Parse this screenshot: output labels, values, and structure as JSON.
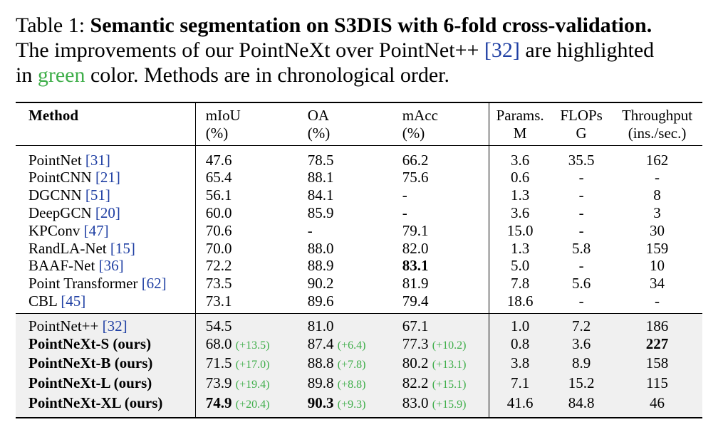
{
  "caption": {
    "label": "Table 1:",
    "title": "Semantic segmentation on S3DIS with 6-fold cross-validation.",
    "text1": "The improvements of our PointNeXt over PointNet++ ",
    "cite": "[32]",
    "text2": " are highlighted",
    "text3": "in ",
    "green_word": "green",
    "text4": " color. Methods are in chronological order."
  },
  "columns": {
    "method": "Method",
    "miou": [
      "mIoU",
      "(%)"
    ],
    "oa": [
      "OA",
      "(%)"
    ],
    "macc": [
      "mAcc",
      "(%)"
    ],
    "params": [
      "Params.",
      "M"
    ],
    "flops": [
      "FLOPs",
      "G"
    ],
    "throughput": [
      "Throughput",
      "(ins./sec.)"
    ]
  },
  "group1": [
    {
      "name": "PointNet",
      "cite": "[31]",
      "miou": "47.6",
      "oa": "78.5",
      "macc": "66.2",
      "params": "3.6",
      "flops": "35.5",
      "throughput": "162"
    },
    {
      "name": "PointCNN",
      "cite": "[21]",
      "miou": "65.4",
      "oa": "88.1",
      "macc": "75.6",
      "params": "0.6",
      "flops": "-",
      "throughput": "-"
    },
    {
      "name": "DGCNN",
      "cite": "[51]",
      "miou": "56.1",
      "oa": "84.1",
      "macc": "-",
      "params": "1.3",
      "flops": "-",
      "throughput": "8"
    },
    {
      "name": "DeepGCN",
      "cite": "[20]",
      "miou": "60.0",
      "oa": "85.9",
      "macc": "-",
      "params": "3.6",
      "flops": "-",
      "throughput": "3"
    },
    {
      "name": "KPConv",
      "cite": "[47]",
      "miou": "70.6",
      "oa": "-",
      "macc": "79.1",
      "params": "15.0",
      "flops": "-",
      "throughput": "30"
    },
    {
      "name": "RandLA-Net",
      "cite": "[15]",
      "miou": "70.0",
      "oa": "88.0",
      "macc": "82.0",
      "params": "1.3",
      "flops": "5.8",
      "throughput": "159"
    },
    {
      "name": "BAAF-Net",
      "cite": "[36]",
      "miou": "72.2",
      "oa": "88.9",
      "macc": "83.1",
      "params": "5.0",
      "flops": "-",
      "throughput": "10"
    },
    {
      "name": "Point Transformer",
      "cite": "[62]",
      "miou": "73.5",
      "oa": "90.2",
      "macc": "81.9",
      "params": "7.8",
      "flops": "5.6",
      "throughput": "34"
    },
    {
      "name": "CBL",
      "cite": "[45]",
      "miou": "73.1",
      "oa": "89.6",
      "macc": "79.4",
      "params": "18.6",
      "flops": "-",
      "throughput": "-"
    }
  ],
  "group2": [
    {
      "name": "PointNet++",
      "cite": "[32]",
      "miou": "54.5",
      "miou_imp": "",
      "oa": "81.0",
      "oa_imp": "",
      "macc": "67.1",
      "macc_imp": "",
      "params": "1.0",
      "flops": "7.2",
      "throughput": "186"
    },
    {
      "name": "PointNeXt-S (ours)",
      "cite": "",
      "miou": "68.0",
      "miou_imp": "(+13.5)",
      "oa": "87.4",
      "oa_imp": "(+6.4)",
      "macc": "77.3",
      "macc_imp": "(+10.2)",
      "params": "0.8",
      "flops": "3.6",
      "throughput": "227"
    },
    {
      "name": "PointNeXt-B (ours)",
      "cite": "",
      "miou": "71.5",
      "miou_imp": "(+17.0)",
      "oa": "88.8",
      "oa_imp": "(+7.8)",
      "macc": "80.2",
      "macc_imp": "(+13.1)",
      "params": "3.8",
      "flops": "8.9",
      "throughput": "158"
    },
    {
      "name": "PointNeXt-L (ours)",
      "cite": "",
      "miou": "73.9",
      "miou_imp": "(+19.4)",
      "oa": "89.8",
      "oa_imp": "(+8.8)",
      "macc": "82.2",
      "macc_imp": "(+15.1)",
      "params": "7.1",
      "flops": "15.2",
      "throughput": "115"
    },
    {
      "name": "PointNeXt-XL (ours)",
      "cite": "",
      "miou": "74.9",
      "miou_imp": "(+20.4)",
      "oa": "90.3",
      "oa_imp": "(+9.3)",
      "macc": "83.0",
      "macc_imp": "(+15.9)",
      "params": "41.6",
      "flops": "84.8",
      "throughput": "46"
    }
  ]
}
